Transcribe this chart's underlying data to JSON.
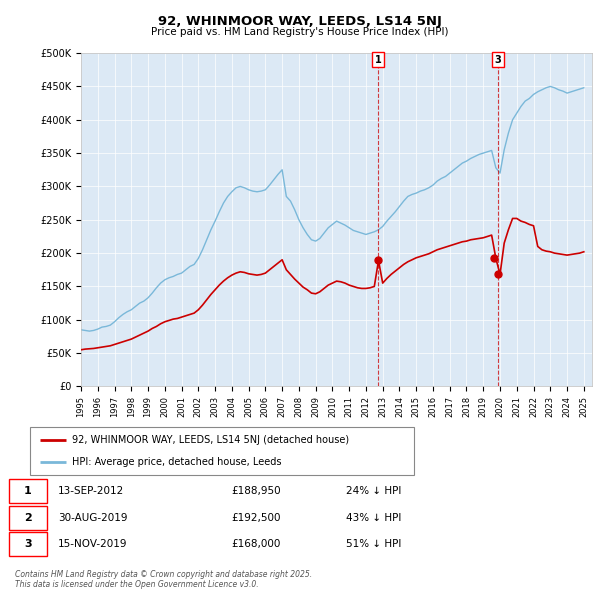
{
  "title": "92, WHINMOOR WAY, LEEDS, LS14 5NJ",
  "subtitle": "Price paid vs. HM Land Registry's House Price Index (HPI)",
  "ylim": [
    0,
    500000
  ],
  "xlim_start": 1995.0,
  "xlim_end": 2025.5,
  "plot_bg_color": "#dce9f5",
  "hpi_color": "#7ab8d9",
  "price_color": "#cc0000",
  "marker1_date": 2012.71,
  "marker2_date": 2019.66,
  "marker3_date": 2019.88,
  "transaction1": {
    "label": "1",
    "date": "13-SEP-2012",
    "price": "£188,950",
    "hpi": "24% ↓ HPI"
  },
  "transaction2": {
    "label": "2",
    "date": "30-AUG-2019",
    "price": "£192,500",
    "hpi": "43% ↓ HPI"
  },
  "transaction3": {
    "label": "3",
    "date": "15-NOV-2019",
    "price": "£168,000",
    "hpi": "51% ↓ HPI"
  },
  "legend_line1": "92, WHINMOOR WAY, LEEDS, LS14 5NJ (detached house)",
  "legend_line2": "HPI: Average price, detached house, Leeds",
  "footer": "Contains HM Land Registry data © Crown copyright and database right 2025.\nThis data is licensed under the Open Government Licence v3.0.",
  "hpi_data_x": [
    1995.0,
    1995.25,
    1995.5,
    1995.75,
    1996.0,
    1996.25,
    1996.5,
    1996.75,
    1997.0,
    1997.25,
    1997.5,
    1997.75,
    1998.0,
    1998.25,
    1998.5,
    1998.75,
    1999.0,
    1999.25,
    1999.5,
    1999.75,
    2000.0,
    2000.25,
    2000.5,
    2000.75,
    2001.0,
    2001.25,
    2001.5,
    2001.75,
    2002.0,
    2002.25,
    2002.5,
    2002.75,
    2003.0,
    2003.25,
    2003.5,
    2003.75,
    2004.0,
    2004.25,
    2004.5,
    2004.75,
    2005.0,
    2005.25,
    2005.5,
    2005.75,
    2006.0,
    2006.25,
    2006.5,
    2006.75,
    2007.0,
    2007.25,
    2007.5,
    2007.75,
    2008.0,
    2008.25,
    2008.5,
    2008.75,
    2009.0,
    2009.25,
    2009.5,
    2009.75,
    2010.0,
    2010.25,
    2010.5,
    2010.75,
    2011.0,
    2011.25,
    2011.5,
    2011.75,
    2012.0,
    2012.25,
    2012.5,
    2012.75,
    2013.0,
    2013.25,
    2013.5,
    2013.75,
    2014.0,
    2014.25,
    2014.5,
    2014.75,
    2015.0,
    2015.25,
    2015.5,
    2015.75,
    2016.0,
    2016.25,
    2016.5,
    2016.75,
    2017.0,
    2017.25,
    2017.5,
    2017.75,
    2018.0,
    2018.25,
    2018.5,
    2018.75,
    2019.0,
    2019.25,
    2019.5,
    2019.75,
    2020.0,
    2020.25,
    2020.5,
    2020.75,
    2021.0,
    2021.25,
    2021.5,
    2021.75,
    2022.0,
    2022.25,
    2022.5,
    2022.75,
    2023.0,
    2023.25,
    2023.5,
    2023.75,
    2024.0,
    2024.25,
    2024.5,
    2024.75,
    2025.0
  ],
  "hpi_data_y": [
    85000,
    84000,
    83000,
    84000,
    86000,
    89000,
    90000,
    92000,
    97000,
    103000,
    108000,
    112000,
    115000,
    120000,
    125000,
    128000,
    133000,
    140000,
    148000,
    155000,
    160000,
    163000,
    165000,
    168000,
    170000,
    175000,
    180000,
    183000,
    192000,
    205000,
    220000,
    235000,
    248000,
    262000,
    275000,
    285000,
    292000,
    298000,
    300000,
    298000,
    295000,
    293000,
    292000,
    293000,
    295000,
    302000,
    310000,
    318000,
    325000,
    285000,
    278000,
    265000,
    250000,
    238000,
    228000,
    220000,
    218000,
    222000,
    230000,
    238000,
    243000,
    248000,
    245000,
    242000,
    238000,
    234000,
    232000,
    230000,
    228000,
    230000,
    232000,
    235000,
    240000,
    248000,
    255000,
    262000,
    270000,
    278000,
    285000,
    288000,
    290000,
    293000,
    295000,
    298000,
    302000,
    308000,
    312000,
    315000,
    320000,
    325000,
    330000,
    335000,
    338000,
    342000,
    345000,
    348000,
    350000,
    352000,
    354000,
    328000,
    320000,
    355000,
    380000,
    400000,
    410000,
    420000,
    428000,
    432000,
    438000,
    442000,
    445000,
    448000,
    450000,
    448000,
    445000,
    443000,
    440000,
    442000,
    444000,
    446000,
    448000
  ],
  "price_data_x": [
    1995.0,
    1995.25,
    1995.5,
    1995.75,
    1996.0,
    1996.25,
    1996.5,
    1996.75,
    1997.0,
    1997.25,
    1997.5,
    1997.75,
    1998.0,
    1998.25,
    1998.5,
    1998.75,
    1999.0,
    1999.25,
    1999.5,
    1999.75,
    2000.0,
    2000.25,
    2000.5,
    2000.75,
    2001.0,
    2001.25,
    2001.5,
    2001.75,
    2002.0,
    2002.25,
    2002.5,
    2002.75,
    2003.0,
    2003.25,
    2003.5,
    2003.75,
    2004.0,
    2004.25,
    2004.5,
    2004.75,
    2005.0,
    2005.25,
    2005.5,
    2005.75,
    2006.0,
    2006.25,
    2006.5,
    2006.75,
    2007.0,
    2007.25,
    2007.5,
    2007.75,
    2008.0,
    2008.25,
    2008.5,
    2008.75,
    2009.0,
    2009.25,
    2009.5,
    2009.75,
    2010.0,
    2010.25,
    2010.5,
    2010.75,
    2011.0,
    2011.25,
    2011.5,
    2011.75,
    2012.0,
    2012.25,
    2012.5,
    2012.75,
    2013.0,
    2013.25,
    2013.5,
    2013.75,
    2014.0,
    2014.25,
    2014.5,
    2014.75,
    2015.0,
    2015.25,
    2015.5,
    2015.75,
    2016.0,
    2016.25,
    2016.5,
    2016.75,
    2017.0,
    2017.25,
    2017.5,
    2017.75,
    2018.0,
    2018.25,
    2018.5,
    2018.75,
    2019.0,
    2019.25,
    2019.5,
    2019.75,
    2020.0,
    2020.25,
    2020.5,
    2020.75,
    2021.0,
    2021.25,
    2021.5,
    2021.75,
    2022.0,
    2022.25,
    2022.5,
    2022.75,
    2023.0,
    2023.25,
    2023.5,
    2023.75,
    2024.0,
    2024.25,
    2024.5,
    2024.75,
    2025.0
  ],
  "price_data_y": [
    55000,
    56000,
    56500,
    57000,
    58000,
    59000,
    60000,
    61000,
    63000,
    65000,
    67000,
    69000,
    71000,
    74000,
    77000,
    80000,
    83000,
    87000,
    90000,
    94000,
    97000,
    99000,
    101000,
    102000,
    104000,
    106000,
    108000,
    110000,
    115000,
    122000,
    130000,
    138000,
    145000,
    152000,
    158000,
    163000,
    167000,
    170000,
    172000,
    171000,
    169000,
    168000,
    167000,
    168000,
    170000,
    175000,
    180000,
    185000,
    190000,
    175000,
    168000,
    161000,
    155000,
    149000,
    145000,
    140000,
    139000,
    142000,
    147000,
    152000,
    155000,
    158000,
    157000,
    155000,
    152000,
    150000,
    148000,
    147000,
    147000,
    148000,
    150000,
    188950,
    155000,
    162000,
    168000,
    173000,
    178000,
    183000,
    187000,
    190000,
    193000,
    195000,
    197000,
    199000,
    202000,
    205000,
    207000,
    209000,
    211000,
    213000,
    215000,
    217000,
    218000,
    220000,
    221000,
    222000,
    223000,
    225000,
    227000,
    192500,
    168000,
    215000,
    235000,
    252000,
    252000,
    248000,
    246000,
    243000,
    241000,
    210000,
    205000,
    203000,
    202000,
    200000,
    199000,
    198000,
    197000,
    198000,
    199000,
    200000,
    202000
  ]
}
